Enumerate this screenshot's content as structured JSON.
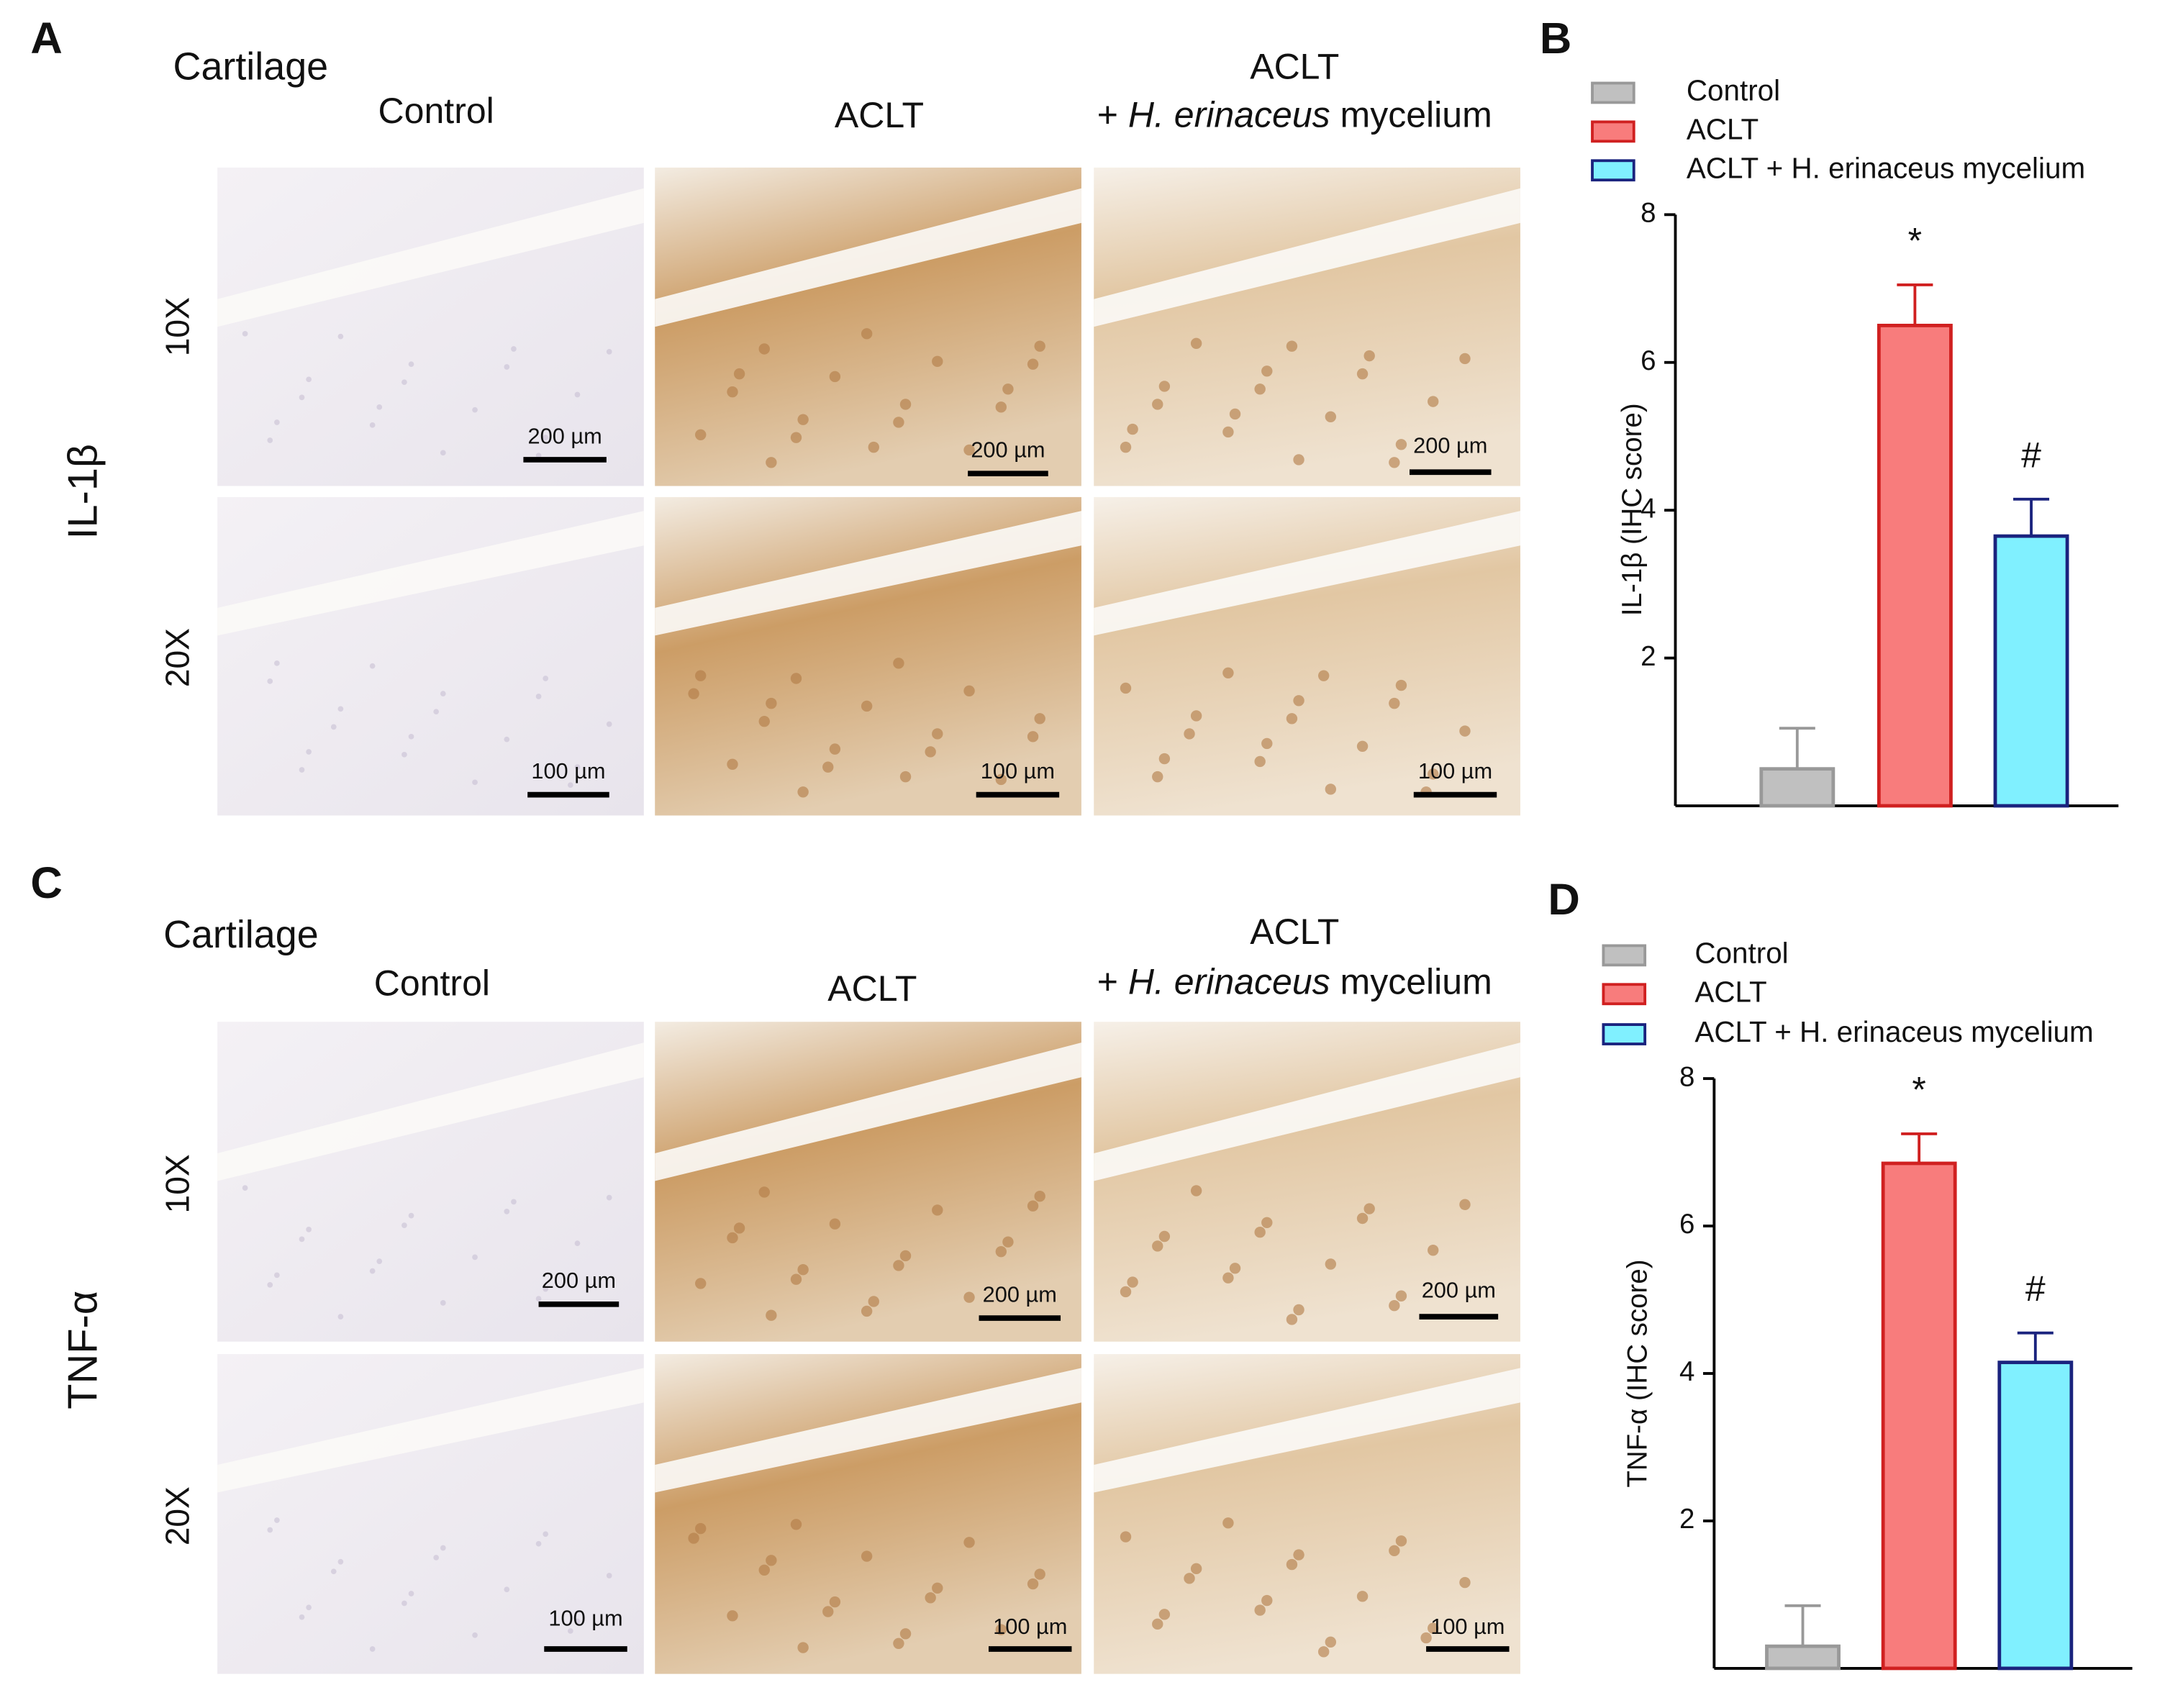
{
  "panels": [
    {
      "label": "A",
      "tissue": "Cartilage",
      "marker": "IL-1β",
      "columns": [
        {
          "title": "Control"
        },
        {
          "title": "ACLT"
        },
        {
          "title": "ACLT",
          "subtitle": [
            "+ ",
            "H. erinaceus",
            " mycelium"
          ]
        }
      ],
      "rows": [
        "10X",
        "20X"
      ],
      "scale_bars": [
        [
          "200 µm",
          "200 µm",
          "200 µm"
        ],
        [
          "100 µm",
          "100 µm",
          "100 µm"
        ]
      ]
    },
    {
      "label": "C",
      "tissue": "Cartilage",
      "marker": "TNF-α",
      "columns": [
        {
          "title": "Control"
        },
        {
          "title": "ACLT"
        },
        {
          "title": "ACLT",
          "subtitle": [
            "+ ",
            "H. erinaceus",
            " mycelium"
          ]
        }
      ],
      "rows": [
        "10X",
        "20X"
      ],
      "scale_bars": [
        [
          "200 µm",
          "200 µm",
          "200 µm"
        ],
        [
          "100 µm",
          "100 µm",
          "100 µm"
        ]
      ]
    }
  ],
  "chart_data": [
    {
      "type": "bar",
      "label": "B",
      "y_label": "IL-1β (IHC score)",
      "ylim": [
        0,
        8
      ],
      "yticks": [
        2,
        4,
        6,
        8
      ],
      "series": [
        {
          "name": "Control",
          "color": "#c0c0c0",
          "edge": "#999999",
          "values": [
            0.5
          ],
          "errors": [
            0.55
          ]
        },
        {
          "name": "ACLT",
          "color": "#f87c7c",
          "edge": "#d02020",
          "values": [
            6.5
          ],
          "errors": [
            0.55
          ]
        },
        {
          "name": "ACLT + H. erinaceus mycelium",
          "color": "#80f0ff",
          "edge": "#1a237e",
          "values": [
            3.65
          ],
          "errors": [
            0.5
          ]
        }
      ],
      "annotations": [
        {
          "text": "*",
          "series": 1,
          "color": "#d62728"
        },
        {
          "text": "#",
          "series": 2,
          "color": "#1a237e"
        }
      ]
    },
    {
      "type": "bar",
      "label": "D",
      "y_label": "TNF-α (IHC score)",
      "ylim": [
        0,
        8
      ],
      "yticks": [
        2,
        4,
        6,
        8
      ],
      "series": [
        {
          "name": "Control",
          "color": "#c0c0c0",
          "edge": "#999999",
          "values": [
            0.3
          ],
          "errors": [
            0.55
          ]
        },
        {
          "name": "ACLT",
          "color": "#f87c7c",
          "edge": "#d02020",
          "values": [
            6.85
          ],
          "errors": [
            0.4
          ]
        },
        {
          "name": "ACLT + H. erinaceus mycelium",
          "color": "#80f0ff",
          "edge": "#1a237e",
          "values": [
            4.15
          ],
          "errors": [
            0.4
          ]
        }
      ],
      "annotations": [
        {
          "text": "*",
          "series": 1,
          "color": "#d62728"
        },
        {
          "text": "#",
          "series": 2,
          "color": "#1a237e"
        }
      ]
    }
  ]
}
